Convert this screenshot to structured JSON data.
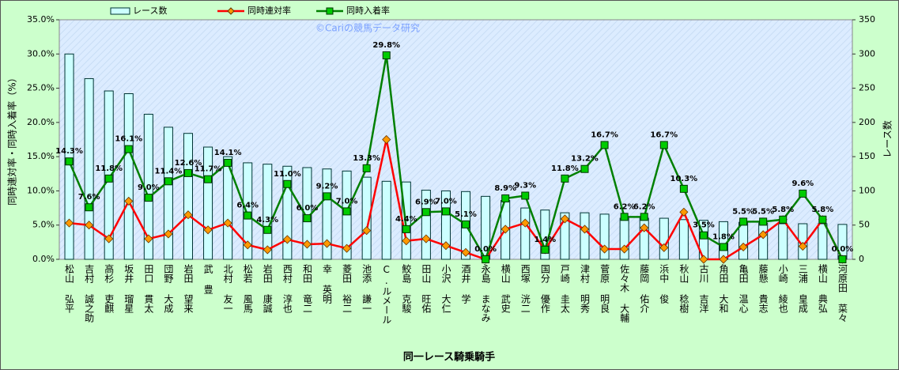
{
  "chart_data": {
    "type": "bar",
    "watermark": "©Cariの競馬データ研究",
    "x_label": "同一レース騎乗騎手",
    "y_label": "同時連対率・同時入着率（%）",
    "y2_label": "レース数",
    "legend": "top",
    "grid": false,
    "categories": [
      "松山 弘平",
      "吉村 誠之助",
      "高杉 吏麒",
      "坂井 瑠星",
      "田口 貫太",
      "団野 大成",
      "岩田 望来",
      "武 豊",
      "北村 友一",
      "松若 風馬",
      "岩田 康誠",
      "西村 淳也",
      "和田 竜二",
      "幸 英明",
      "菱田 裕二",
      "池添 謙一",
      "C.ルメール",
      "鮫島 克駿",
      "田山 旺佑",
      "小沢 大仁",
      "酒井 学",
      "永島 まなみ",
      "横山 武史",
      "西塚 洸二",
      "国分 優作",
      "戸崎 圭太",
      "津村 明秀",
      "菅原 明良",
      "佐々木 大輔",
      "藤岡 佑介",
      "浜中 俊",
      "秋山 稔樹",
      "古川 吉洋",
      "角田 大和",
      "亀田 温心",
      "藤懸 貴志",
      "小崎 綾也",
      "三浦 皇成",
      "横山 典弘",
      "河原田 菜々"
    ],
    "series": [
      {
        "name": "レース数",
        "type": "bar",
        "axis": "y2",
        "color": "#ccffff",
        "values": [
          300,
          264,
          246,
          242,
          212,
          193,
          184,
          164,
          150,
          141,
          139,
          136,
          134,
          132,
          129,
          120,
          114,
          113,
          101,
          100,
          99,
          92,
          86,
          75,
          72,
          68,
          68,
          66,
          60,
          60,
          60,
          58,
          57,
          55,
          54,
          53,
          52,
          52,
          52,
          51
        ]
      },
      {
        "name": "同時連対率",
        "type": "line",
        "color": "#ff0000",
        "marker": "diamond",
        "marker_color": "#ff9900",
        "values": [
          5.3,
          5.0,
          3.0,
          8.5,
          3.0,
          3.7,
          6.5,
          4.3,
          5.3,
          2.1,
          1.4,
          2.9,
          2.2,
          2.3,
          1.6,
          4.2,
          17.5,
          2.7,
          3.0,
          2.0,
          1.0,
          0,
          4.4,
          5.3,
          1.4,
          5.9,
          4.4,
          1.5,
          1.5,
          4.6,
          1.7,
          6.9,
          0,
          0,
          1.8,
          3.6,
          5.8,
          1.9,
          5.8,
          0
        ]
      },
      {
        "name": "同時入着率",
        "type": "line",
        "color": "#008000",
        "marker": "square",
        "marker_color": "#00cc00",
        "values": [
          14.3,
          7.6,
          11.8,
          16.1,
          9.0,
          11.4,
          12.6,
          11.7,
          14.1,
          6.4,
          4.3,
          11.0,
          6.0,
          9.2,
          7.0,
          13.3,
          29.8,
          4.4,
          6.9,
          7.0,
          5.1,
          0.0,
          8.9,
          9.3,
          1.4,
          11.8,
          13.2,
          16.7,
          6.2,
          6.2,
          16.7,
          10.3,
          3.5,
          1.8,
          5.5,
          5.5,
          5.8,
          9.6,
          5.8,
          0.0
        ],
        "value_labels": [
          "14.3%",
          "7.6%",
          "11.8%",
          "16.1%",
          "9.0%",
          "11.4%",
          "12.6%",
          "11.7%",
          "14.1%",
          "6.4%",
          "4.3%",
          "11.0%",
          "6.0%",
          "9.2%",
          "7.0%",
          "13.3%",
          "29.8%",
          "4.4%",
          "6.9%",
          "7.0%",
          "5.1%",
          "0.0%",
          "8.9%",
          "9.3%",
          "1.4%",
          "11.8%",
          "13.2%",
          "16.7%",
          "6.2%",
          "6.2%",
          "16.7%",
          "10.3%",
          "3.5%",
          "1.8%",
          "5.5%",
          "5.5%",
          "5.8%",
          "9.6%",
          "5.8%",
          "0.0%"
        ]
      }
    ],
    "ylim": [
      0,
      35
    ],
    "yticks": [
      {
        "value": 0,
        "label": "0.0%"
      },
      {
        "value": 5,
        "label": "5.0%"
      },
      {
        "value": 10,
        "label": "10.0%"
      },
      {
        "value": 15,
        "label": "15.0%"
      },
      {
        "value": 20,
        "label": "20.0%"
      },
      {
        "value": 25,
        "label": "25.0%"
      },
      {
        "value": 30,
        "label": "30.0%"
      },
      {
        "value": 35,
        "label": "35.0%"
      }
    ],
    "y2lim": [
      0,
      350
    ],
    "y2ticks": [
      0,
      50,
      100,
      150,
      200,
      250,
      300,
      350
    ]
  }
}
